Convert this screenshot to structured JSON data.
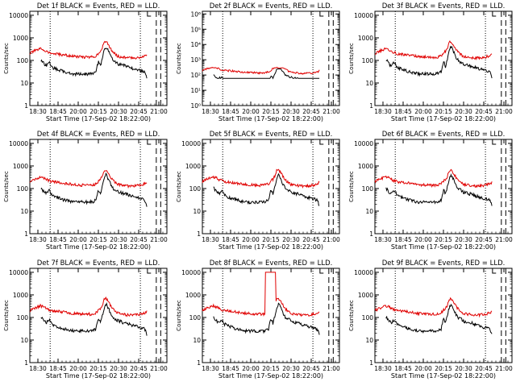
{
  "chart_data": {
    "type": "line",
    "x_axis": {
      "label": "Start Time (17-Sep-02 18:22:00)",
      "tick_labels": [
        "18:30",
        "18:45",
        "20:00",
        "20:15",
        "20:30",
        "20:45",
        "21:00"
      ],
      "range_minutes_from_start": [
        0,
        155
      ]
    },
    "y_axis": {
      "label": "Counts/sec",
      "scale": "log"
    },
    "series_colors": {
      "events": "#000000",
      "lld": "#e00000"
    },
    "panels": [
      {
        "title": "Det 1f BLACK = Events, RED = LLD.",
        "y_ticks": [
          "1",
          "10",
          "100",
          "1000",
          "10000"
        ],
        "ylim": [
          1,
          15000
        ],
        "events_scale": 1.0,
        "lld_scale": 1.0
      },
      {
        "title": "Det 2f BLACK = Events, RED = LLD.",
        "y_ticks": [
          "10⁰",
          "10¹",
          "10²",
          "10³",
          "10⁴",
          "10⁵",
          "10⁶"
        ],
        "ylim": [
          1,
          1500000
        ],
        "events_scale": 1.0,
        "lld_scale": 1.0,
        "flat_top": true
      },
      {
        "title": "Det 3f BLACK = Events, RED = LLD.",
        "y_ticks": [
          "1",
          "10",
          "100",
          "1000",
          "10000"
        ],
        "ylim": [
          1,
          15000
        ],
        "events_scale": 1.0,
        "lld_scale": 1.0
      },
      {
        "title": "Det 4f BLACK = Events, RED = LLD.",
        "y_ticks": [
          "1",
          "10",
          "100",
          "1000",
          "10000"
        ],
        "ylim": [
          1,
          15000
        ],
        "events_scale": 1.0,
        "lld_scale": 1.0
      },
      {
        "title": "Det 5f BLACK = Events, RED = LLD.",
        "y_ticks": [
          "1",
          "10",
          "100",
          "1000",
          "10000"
        ],
        "ylim": [
          1,
          15000
        ],
        "events_scale": 1.0,
        "lld_scale": 1.0
      },
      {
        "title": "Det 6f BLACK = Events, RED = LLD.",
        "y_ticks": [
          "1",
          "10",
          "100",
          "1000",
          "10000"
        ],
        "ylim": [
          1,
          15000
        ],
        "events_scale": 1.0,
        "lld_scale": 1.0
      },
      {
        "title": "Det 7f BLACK = Events, RED = LLD.",
        "y_ticks": [
          "1",
          "10",
          "100",
          "1000",
          "10000"
        ],
        "ylim": [
          1,
          15000
        ],
        "events_scale": 1.0,
        "lld_scale": 1.0
      },
      {
        "title": "Det 8f BLACK = Events, RED = LLD.",
        "y_ticks": [
          "1",
          "10",
          "100",
          "1000",
          "10000"
        ],
        "ylim": [
          1,
          15000
        ],
        "events_scale": 1.0,
        "lld_scale": 1.0,
        "spike": true
      },
      {
        "title": "Det 9f BLACK = Events, RED = LLD.",
        "y_ticks": [
          "1",
          "10",
          "100",
          "1000",
          "10000"
        ],
        "ylim": [
          1,
          15000
        ],
        "events_scale": 1.0,
        "lld_scale": 1.0
      }
    ],
    "base_profile": {
      "minutes": [
        0,
        5,
        10,
        12,
        14,
        16,
        18,
        20,
        22,
        25,
        30,
        40,
        50,
        60,
        70,
        75,
        78,
        80,
        82,
        84,
        86,
        88,
        90,
        92,
        94,
        96,
        98,
        100,
        105,
        110,
        115,
        120,
        125,
        130,
        133
      ],
      "events": [
        null,
        null,
        null,
        110,
        90,
        70,
        60,
        65,
        80,
        50,
        40,
        30,
        25,
        25,
        25,
        30,
        90,
        50,
        120,
        250,
        400,
        300,
        200,
        130,
        100,
        90,
        80,
        70,
        60,
        55,
        45,
        40,
        35,
        30,
        12
      ],
      "lld": [
        200,
        260,
        300,
        330,
        310,
        290,
        260,
        240,
        220,
        200,
        190,
        170,
        150,
        140,
        140,
        160,
        220,
        260,
        350,
        600,
        700,
        550,
        400,
        300,
        240,
        200,
        170,
        150,
        140,
        130,
        130,
        130,
        140,
        160,
        200
      ]
    },
    "dotted_markers_minutes": [
      23,
      125
    ],
    "dashed_markers_minutes": [
      143,
      148
    ]
  }
}
